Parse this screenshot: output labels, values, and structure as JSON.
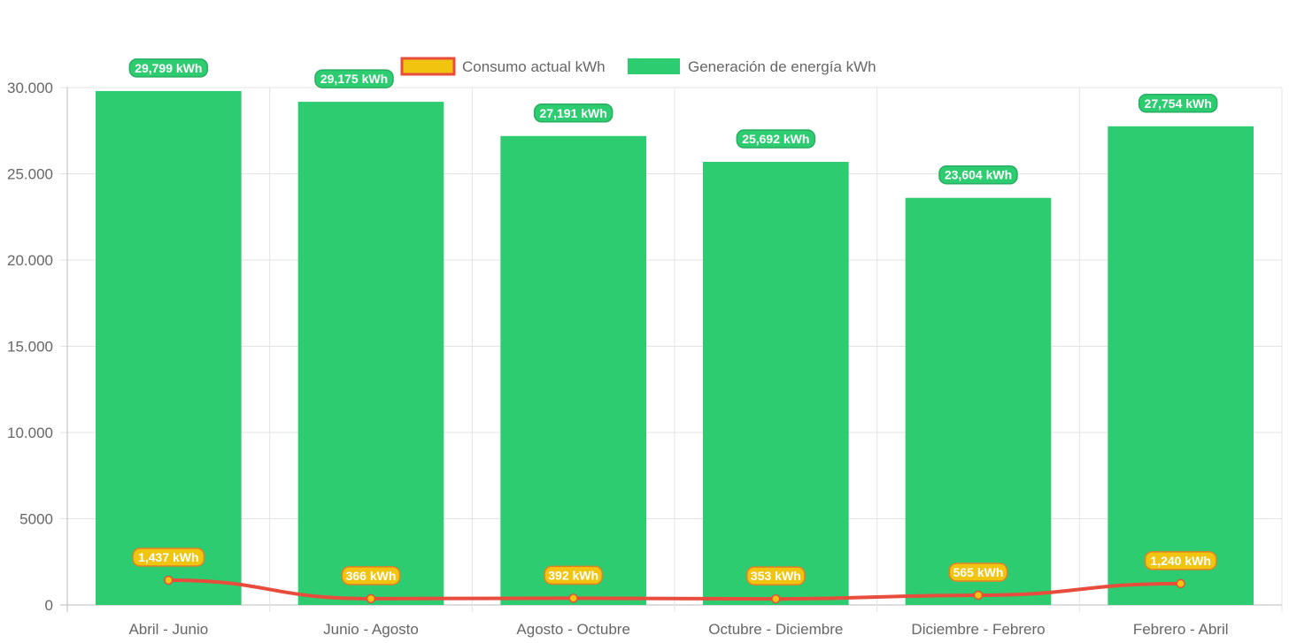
{
  "chart_data": {
    "type": "bar",
    "categories": [
      "Abril - Junio",
      "Junio - Agosto",
      "Agosto - Octubre",
      "Octubre - Diciembre",
      "Diciembre - Febrero",
      "Febrero - Abril"
    ],
    "series": [
      {
        "name": "Consumo actual kWh",
        "type": "line",
        "values": [
          1437,
          366,
          392,
          353,
          565,
          1240
        ],
        "labels": [
          "1,437 kWh",
          "366 kWh",
          "392 kWh",
          "353 kWh",
          "565 kWh",
          "1,240 kWh"
        ],
        "color": "#f1c40f",
        "border_color": "#e74c3c"
      },
      {
        "name": "Generación de energía kWh",
        "type": "bar",
        "values": [
          29799,
          29175,
          27191,
          25692,
          23604,
          27754
        ],
        "labels": [
          "29,799 kWh",
          "29,175 kWh",
          "27,191 kWh",
          "25,692 kWh",
          "23,604 kWh",
          "27,754 kWh"
        ],
        "color": "#2ecc71",
        "border_color": "#27ae60"
      }
    ],
    "ylim": [
      0,
      30000
    ],
    "yticks": [
      0,
      5000,
      10000,
      15000,
      20000,
      25000,
      30000
    ],
    "ytick_labels": [
      "0",
      "5000",
      "10.000",
      "15.000",
      "20.000",
      "25.000",
      "30.000"
    ],
    "legend_position": "top",
    "grid": true
  }
}
